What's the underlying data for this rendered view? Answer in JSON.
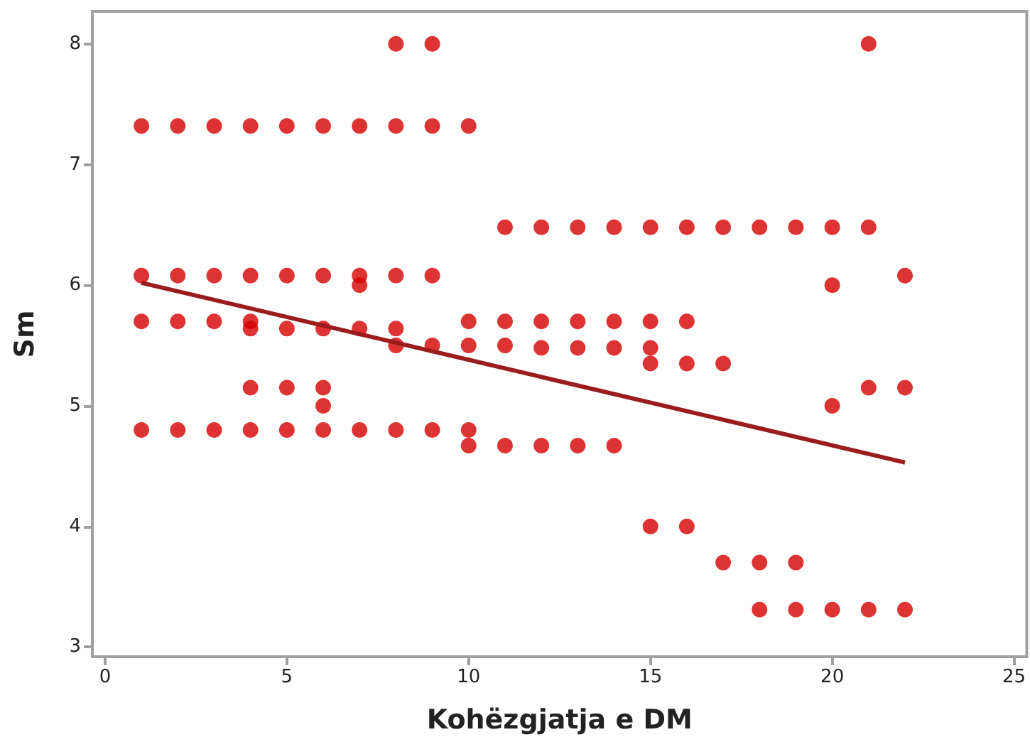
{
  "chart_data": {
    "type": "scatter",
    "xlabel": "Kohëzgjatja e DM",
    "ylabel": "Sm",
    "xlim": [
      -0.35,
      25.35
    ],
    "xticks": [
      0,
      5,
      10,
      15,
      20,
      25
    ],
    "ylim": [
      2.92,
      8.27
    ],
    "yticks": [
      3,
      4,
      5,
      6,
      7,
      8
    ],
    "grid": false,
    "marker": "circle",
    "series": [
      {
        "color": "#d40000",
        "x": [
          1,
          1,
          1,
          1,
          2,
          2,
          2,
          2,
          3,
          3,
          3,
          3,
          4,
          4,
          4,
          4,
          4,
          4,
          5,
          5,
          5,
          5,
          5,
          6,
          6,
          6,
          6,
          6,
          6,
          7,
          7,
          7,
          7,
          7,
          8,
          8,
          8,
          8,
          8,
          8,
          9,
          9,
          9,
          9,
          9,
          10,
          10,
          10,
          10,
          10,
          11,
          11,
          11,
          11,
          12,
          12,
          12,
          12,
          13,
          13,
          13,
          13,
          14,
          14,
          14,
          14,
          15,
          15,
          15,
          15,
          15,
          16,
          16,
          16,
          16,
          17,
          17,
          17,
          18,
          18,
          18,
          19,
          19,
          19,
          20,
          20,
          20,
          20,
          21,
          21,
          21,
          21,
          22,
          22,
          22
        ],
        "values": [
          7.32,
          6.08,
          5.7,
          4.8,
          7.32,
          6.08,
          5.7,
          4.8,
          7.32,
          6.08,
          5.7,
          4.8,
          7.32,
          6.08,
          5.7,
          5.64,
          5.15,
          4.8,
          7.32,
          6.08,
          5.64,
          5.15,
          4.8,
          7.32,
          6.08,
          5.64,
          5.15,
          5.0,
          4.8,
          7.32,
          6.08,
          6.0,
          5.64,
          4.8,
          8,
          7.32,
          6.08,
          5.64,
          5.5,
          4.8,
          8,
          7.32,
          6.08,
          5.5,
          4.8,
          7.32,
          5.7,
          5.5,
          4.8,
          4.67,
          6.48,
          5.7,
          5.5,
          4.67,
          6.48,
          5.7,
          5.48,
          4.67,
          6.48,
          5.7,
          5.48,
          4.67,
          6.48,
          5.7,
          5.48,
          4.67,
          6.48,
          5.7,
          5.48,
          5.35,
          4.0,
          6.48,
          5.7,
          5.35,
          4.0,
          6.48,
          5.35,
          3.7,
          6.48,
          3.7,
          3.31,
          6.48,
          3.7,
          3.31,
          6.48,
          6.0,
          5.0,
          3.31,
          8,
          6.48,
          5.15,
          3.31,
          6.08,
          5.15,
          3.31
        ]
      },
      {
        "type": "line",
        "color": "#9b1c1c",
        "marker": "none",
        "line_style": "solid",
        "x": [
          1,
          22
        ],
        "values": [
          6.02,
          4.53
        ]
      }
    ]
  }
}
